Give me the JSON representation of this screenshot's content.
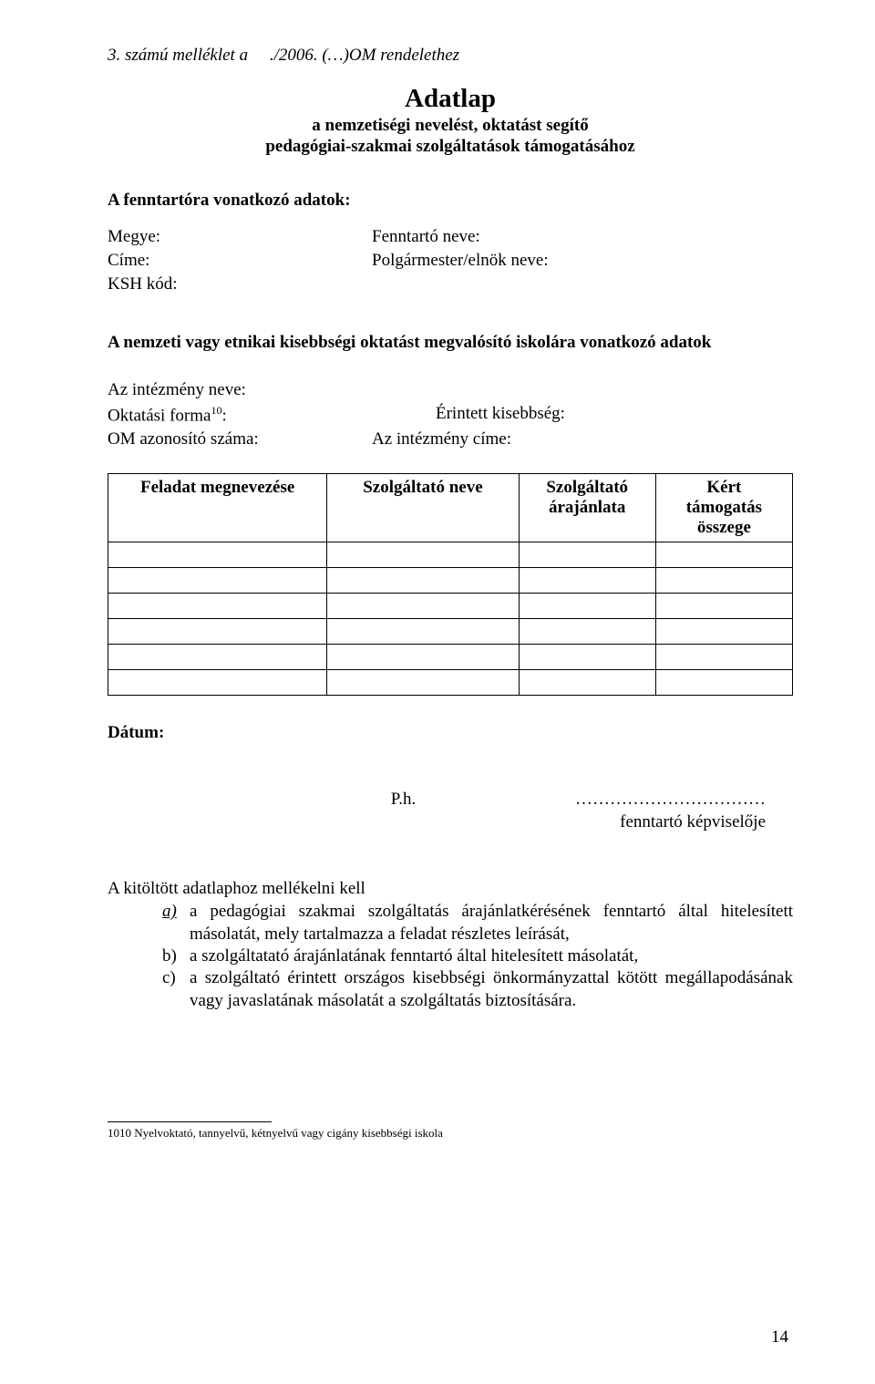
{
  "header_line_prefix": "3. számú melléklet a ",
  "header_line_suffix": "./2006. (…)OM  rendelethez",
  "main_title": "Adatlap",
  "sub_title_line1": "a nemzetiségi nevelést, oktatást segítő",
  "sub_title_line2": "pedagógiai-szakmai szolgáltatások támogatásához",
  "section_a_title": "A fenntartóra vonatkozó adatok:",
  "labels": {
    "megye": "Megye:",
    "fenntarto_neve": "Fenntartó neve:",
    "cime": "Címe:",
    "polgarmester": "Polgármester/elnök neve:",
    "ksh": "KSH kód:"
  },
  "section_b_title": "A nemzeti vagy etnikai kisebbségi oktatást megvalósító iskolára vonatkozó adatok",
  "labels_b": {
    "intezmeny_neve": "Az intézmény neve:",
    "oktatasi_forma": "Oktatási forma",
    "oktatasi_forma_sup": "10",
    "oktatasi_forma_colon": ":",
    "erintett": "Érintett kisebbség:",
    "om_azonosito": "OM azonosító száma:",
    "intezmeny_cime": "Az intézmény címe:"
  },
  "table": {
    "columns": [
      "Feladat megnevezése",
      "Szolgáltató neve",
      "Szolgáltató árajánlata",
      "Kért támogatás összege"
    ],
    "col_widths": [
      "32%",
      "28%",
      "20%",
      "20%"
    ],
    "blank_rows": 6
  },
  "datum_label": "Dátum:",
  "signature": {
    "ph": "P.h.",
    "dots": "……………………………",
    "role": "fenntartó képviselője"
  },
  "attachments": {
    "intro": "A kitöltött adatlaphoz mellékelni kell",
    "items": [
      {
        "marker": "a)",
        "italic": true,
        "underline": true,
        "text": "a pedagógiai szakmai szolgáltatás árajánlatkérésének fenntartó által hitelesített másolatát, mely tartalmazza a feladat részletes leírását,"
      },
      {
        "marker": "b)",
        "italic": false,
        "underline": false,
        "text": "a szolgáltatató árajánlatának fenntartó által hitelesített másolatát,"
      },
      {
        "marker": "c)",
        "italic": false,
        "underline": false,
        "text": "a szolgáltató érintett országos kisebbségi önkormányzattal kötött megállapodásának vagy javaslatának másolatát a szolgáltatás biztosítására."
      }
    ]
  },
  "footnote": {
    "ref": "1010",
    "text": " Nyelvoktató, tannyelvű, kétnyelvű vagy cigány kisebbségi iskola"
  },
  "page_number": "14"
}
